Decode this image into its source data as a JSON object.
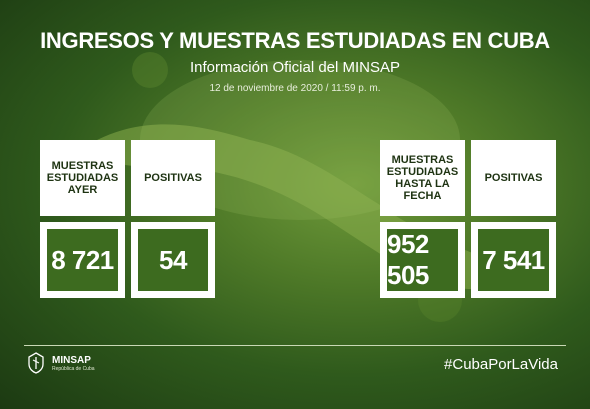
{
  "header": {
    "title": "INGRESOS Y MUESTRAS ESTUDIADAS EN CUBA",
    "subtitle": "Información Oficial del MINSAP",
    "date": "12 de noviembre de 2020 / 11:59 p. m."
  },
  "left_card": {
    "col1_heading": "MUESTRAS ESTUDIADAS AYER",
    "col1_value": "8 721",
    "col2_heading": "POSITIVAS",
    "col2_value": "54"
  },
  "right_card": {
    "col1_heading": "MUESTRAS ESTUDIADAS HASTA LA FECHA",
    "col1_value": "952 505",
    "col2_heading": "POSITIVAS",
    "col2_value": "7 541"
  },
  "footer": {
    "logo_name": "MINSAP",
    "logo_sub": "República de Cuba",
    "hashtag": "#CubaPorLaVida"
  },
  "colors": {
    "background": "#4f7a28",
    "value_box": "#3d6b1f",
    "heading_text": "#1e3312"
  }
}
